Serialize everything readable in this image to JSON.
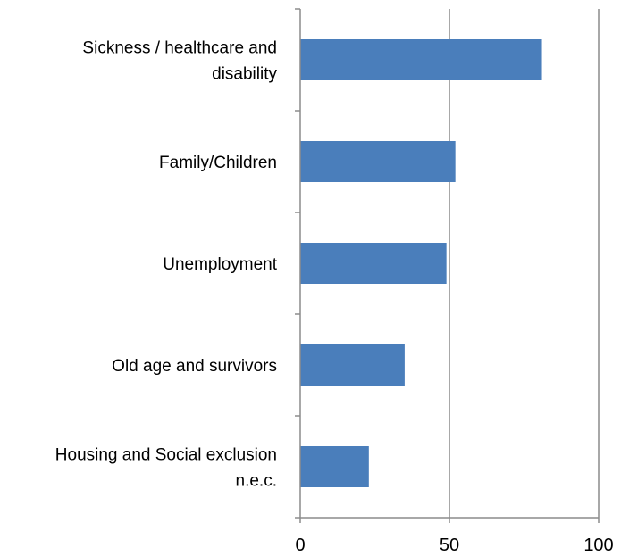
{
  "chart_data": {
    "type": "bar",
    "orientation": "horizontal",
    "title": "",
    "xlabel": "",
    "ylabel": "",
    "categories": [
      [
        "Sickness / healthcare and",
        "disability"
      ],
      [
        "Family/Children"
      ],
      [
        "Unemployment"
      ],
      [
        "Old age and survivors"
      ],
      [
        "Housing and Social exclusion",
        "n.e.c."
      ]
    ],
    "values": [
      81,
      52,
      49,
      35,
      23
    ],
    "xlim": [
      0,
      100
    ],
    "xticks": [
      "0",
      "50",
      "100"
    ],
    "grid": "vertical",
    "legend": "none",
    "bar_color": "#4a7ebb",
    "grid_color": "#8c8c8c",
    "axis_color": "#8c8c8c"
  }
}
